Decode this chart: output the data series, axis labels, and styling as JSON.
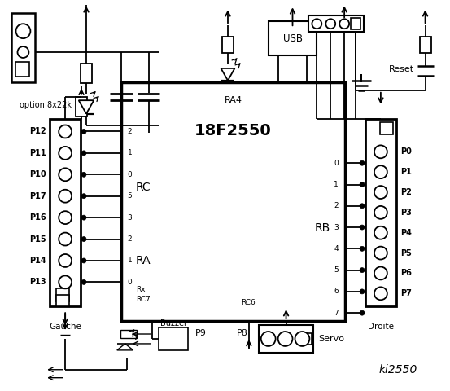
{
  "bg_color": "#ffffff",
  "line_color": "#000000",
  "chip_label": "18F2550",
  "chip_sublabel": "RA4",
  "chip_rc_label": "RC",
  "chip_ra_label": "RA",
  "chip_rb_label": "RB",
  "left_pins": [
    "P12",
    "P11",
    "P10",
    "P17",
    "P16",
    "P15",
    "P14",
    "P13"
  ],
  "left_pin_numbers": [
    "2",
    "1",
    "0",
    "5",
    "3",
    "2",
    "1",
    "0"
  ],
  "right_pins": [
    "P0",
    "P1",
    "P2",
    "P3",
    "P4",
    "P5",
    "P6",
    "P7"
  ],
  "right_pin_numbers": [
    "0",
    "1",
    "2",
    "3",
    "4",
    "5",
    "6",
    "7"
  ],
  "label_gauche": "Gauche",
  "label_droite": "Droite",
  "label_option": "option 8x22k",
  "label_usb": "USB",
  "label_reset": "Reset",
  "label_servo": "Servo",
  "label_buzzer": "Buzzer",
  "label_p8": "P8",
  "label_p9": "P9",
  "label_ki": "ki2550"
}
